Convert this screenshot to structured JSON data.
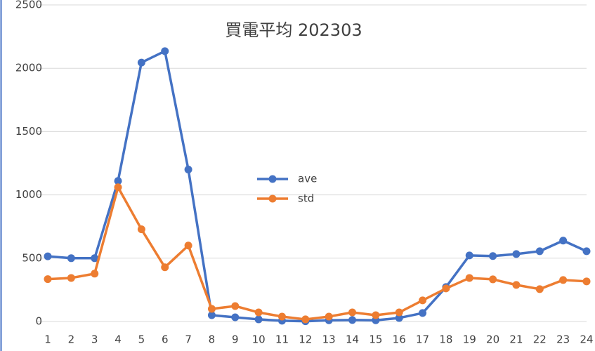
{
  "chart_data": {
    "type": "line",
    "title": "買電平均 202303",
    "categories": [
      "1",
      "2",
      "3",
      "4",
      "5",
      "6",
      "7",
      "8",
      "9",
      "10",
      "11",
      "12",
      "13",
      "14",
      "15",
      "16",
      "17",
      "18",
      "19",
      "20",
      "21",
      "22",
      "23",
      "24"
    ],
    "series": [
      {
        "name": "ave",
        "color": "#4472c4",
        "values": [
          515,
          500,
          500,
          1110,
          2045,
          2135,
          1200,
          50,
          33,
          17,
          6,
          2,
          10,
          12,
          10,
          28,
          67,
          272,
          522,
          517,
          533,
          555,
          639,
          555
        ]
      },
      {
        "name": "std",
        "color": "#ed7d31",
        "values": [
          335,
          344,
          378,
          1060,
          728,
          428,
          600,
          100,
          122,
          72,
          39,
          17,
          39,
          72,
          50,
          72,
          167,
          261,
          344,
          333,
          289,
          256,
          328,
          317
        ]
      }
    ],
    "ylim": [
      0,
      2500
    ],
    "yticks": [
      0,
      500,
      1000,
      1500,
      2000,
      2500
    ],
    "grid": true
  }
}
